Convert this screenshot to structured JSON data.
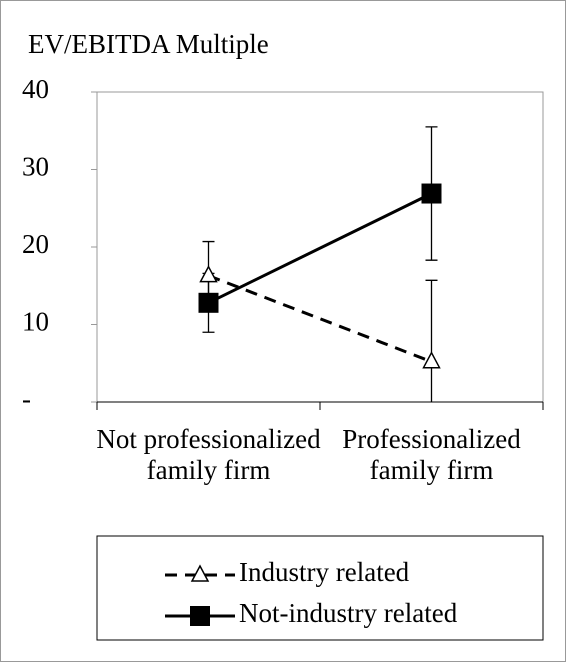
{
  "chart_data": {
    "type": "line",
    "title": "EV/EBITDA Multiple",
    "categories": [
      "Not professionalized family firm",
      "Professionalized family firm"
    ],
    "series": [
      {
        "name": "Industry related",
        "color": "#000000",
        "dash": true,
        "marker": "triangle",
        "values": [
          16.3,
          5.2
        ],
        "errors": [
          4.4,
          10.5
        ]
      },
      {
        "name": "Not-industry related",
        "color": "#000000",
        "dash": false,
        "marker": "square",
        "values": [
          12.8,
          26.9
        ],
        "errors": [
          3.8,
          8.6
        ]
      }
    ],
    "ylim": [
      0,
      40
    ],
    "yticks": [
      {
        "value": 0,
        "label": "-"
      },
      10,
      20,
      30,
      40
    ],
    "grid": false,
    "legend": "bottom"
  }
}
